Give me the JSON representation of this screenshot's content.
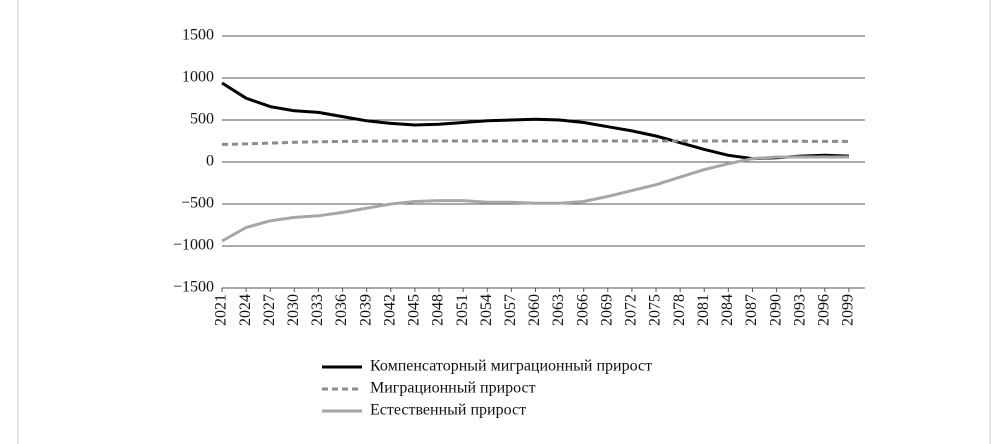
{
  "chart_data": {
    "type": "line",
    "x": [
      2021,
      2024,
      2027,
      2030,
      2033,
      2036,
      2039,
      2042,
      2045,
      2048,
      2051,
      2054,
      2057,
      2060,
      2063,
      2066,
      2069,
      2072,
      2075,
      2078,
      2081,
      2084,
      2087,
      2090,
      2093,
      2096,
      2099
    ],
    "series": [
      {
        "name": "Компенсаторный миграционный прирост",
        "color": "#000000",
        "line_style": "solid",
        "values": [
          940,
          760,
          660,
          610,
          590,
          540,
          490,
          460,
          440,
          450,
          470,
          490,
          500,
          510,
          500,
          470,
          420,
          370,
          310,
          230,
          150,
          80,
          40,
          50,
          70,
          80,
          70
        ]
      },
      {
        "name": "Миграционный прирост",
        "color": "#8c8c8c",
        "line_style": "dashed",
        "values": [
          210,
          215,
          225,
          235,
          240,
          245,
          248,
          250,
          250,
          250,
          250,
          250,
          250,
          250,
          250,
          250,
          250,
          250,
          250,
          250,
          250,
          250,
          248,
          248,
          246,
          245,
          245
        ]
      },
      {
        "name": "Естественный прирост",
        "color": "#a6a6a6",
        "line_style": "solid",
        "values": [
          -940,
          -780,
          -700,
          -660,
          -640,
          -600,
          -550,
          -500,
          -470,
          -460,
          -460,
          -480,
          -480,
          -490,
          -490,
          -470,
          -410,
          -340,
          -270,
          -180,
          -90,
          -20,
          40,
          60,
          60,
          60,
          60
        ]
      }
    ],
    "xlim": [
      2021,
      2101
    ],
    "xticks": [
      2021,
      2024,
      2027,
      2030,
      2033,
      2036,
      2039,
      2042,
      2045,
      2048,
      2051,
      2054,
      2057,
      2060,
      2063,
      2066,
      2069,
      2072,
      2075,
      2078,
      2081,
      2084,
      2087,
      2090,
      2093,
      2096,
      2099
    ],
    "ylim": [
      -1500,
      1500
    ],
    "yticks": [
      {
        "value": -1500,
        "label": "−1500"
      },
      {
        "value": -1000,
        "label": "−1000"
      },
      {
        "value": -500,
        "label": "−500"
      },
      0,
      500,
      1000,
      1500
    ],
    "grid": true,
    "legend": "bottom"
  }
}
